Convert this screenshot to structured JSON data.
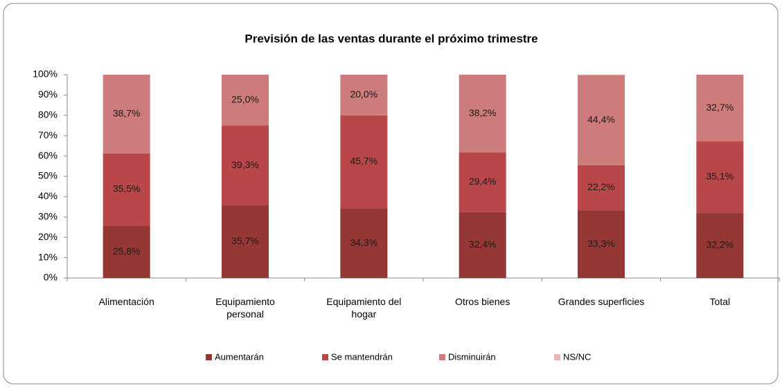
{
  "chart_data": {
    "type": "stacked_bar",
    "title": "Previsión de las ventas durante el próximo trimestre",
    "categories": [
      "Alimentación",
      "Equipamiento\npersonal",
      "Equipamiento del\nhogar",
      "Otros bienes",
      "Grandes superficies",
      "Total"
    ],
    "series": [
      {
        "name": "Aumentarán",
        "color": "#953735",
        "values": [
          25.8,
          35.7,
          34.3,
          32.4,
          33.3,
          32.2
        ],
        "value_labels": [
          "25,8%",
          "35,7%",
          "34,3%",
          "32,4%",
          "33,3%",
          "32,2%"
        ]
      },
      {
        "name": "Se mantendrán",
        "color": "#b9474a",
        "values": [
          35.5,
          39.3,
          45.7,
          29.4,
          22.2,
          35.1
        ],
        "value_labels": [
          "35,5%",
          "39,3%",
          "45,7%",
          "29,4%",
          "22,2%",
          "35,1%"
        ]
      },
      {
        "name": "Disminuirán",
        "color": "#cd7b7b",
        "values": [
          38.7,
          25.0,
          20.0,
          38.2,
          44.4,
          32.7
        ],
        "value_labels": [
          "38,7%",
          "25,0%",
          "20,0%",
          "38,2%",
          "44,4%",
          "32,7%"
        ]
      },
      {
        "name": "NS/NC",
        "color": "#e6b9b8",
        "values": [
          0,
          0,
          0,
          0,
          0,
          0
        ]
      }
    ],
    "ylim": [
      0,
      100
    ],
    "yticks": [
      {
        "value": 0,
        "label": "0%"
      },
      {
        "value": 10,
        "label": "10%"
      },
      {
        "value": 20,
        "label": "20%"
      },
      {
        "value": 30,
        "label": "30%"
      },
      {
        "value": 40,
        "label": "40%"
      },
      {
        "value": 50,
        "label": "50%"
      },
      {
        "value": 60,
        "label": "60%"
      },
      {
        "value": 70,
        "label": "70%"
      },
      {
        "value": 80,
        "label": "80%"
      },
      {
        "value": 90,
        "label": "90%"
      },
      {
        "value": 100,
        "label": "100%"
      }
    ],
    "legend": "bottom",
    "grid": false
  }
}
